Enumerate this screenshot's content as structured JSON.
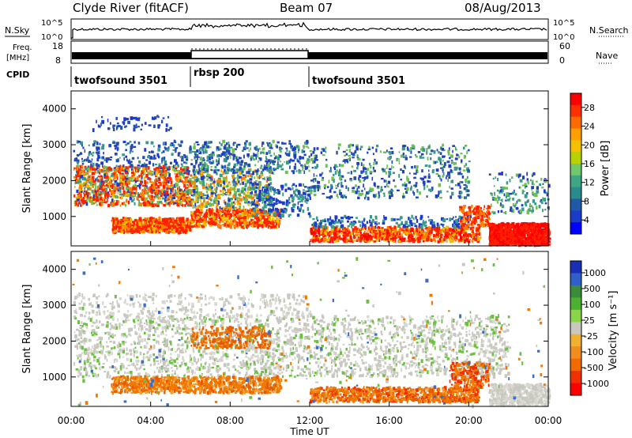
{
  "header": {
    "station": "Clyde River (fitACF)",
    "beam": "Beam 07",
    "date": "08/Aug/2013"
  },
  "strips": {
    "nsky_label": "N.Sky",
    "nsky_ticks": [
      "10^5",
      "10^0"
    ],
    "nsearch_label": "N.Search",
    "nsearch_ticks": [
      "10^5",
      "10^0"
    ],
    "freq_label_1": "Freq.",
    "freq_label_2": "[MHz]",
    "freq_ticks": [
      "18",
      "8"
    ],
    "nave_label": "Nave",
    "nave_ticks": [
      "60",
      "0"
    ],
    "cpid_label": "CPID",
    "cpid_segments": [
      {
        "label": "twofsound 3501",
        "start": 0,
        "end": 6
      },
      {
        "label": "rbsp 200",
        "start": 6,
        "end": 12
      },
      {
        "label": "twofsound 3501",
        "start": 12,
        "end": 24
      }
    ]
  },
  "time_ticks": [
    "00:00",
    "04:00",
    "08:00",
    "12:00",
    "16:00",
    "20:00",
    "00:00"
  ],
  "xlabel": "Time UT",
  "chart_data": [
    {
      "type": "heatmap",
      "name": "power",
      "ylabel": "Slant Range [km]",
      "xlim": [
        0,
        24
      ],
      "ylim": [
        180,
        4500
      ],
      "yticks": [
        1000,
        2000,
        3000,
        4000
      ],
      "colorbar": {
        "label": "Power [dB]",
        "ticks": [
          "28",
          "24",
          "20",
          "16",
          "12",
          "8",
          "4"
        ],
        "colors": [
          "#ff0000",
          "#ff3000",
          "#ff6a00",
          "#ffa000",
          "#f4c000",
          "#b8d200",
          "#6fc86a",
          "#3ea585",
          "#2a8a8c",
          "#1e5aa8",
          "#1a3cc8",
          "#0000ff"
        ]
      },
      "features": [
        {
          "x": [
            0,
            6
          ],
          "y": [
            1400,
            1900
          ],
          "level": "high"
        },
        {
          "x": [
            2,
            6
          ],
          "y": [
            600,
            900
          ],
          "level": "high"
        },
        {
          "x": [
            6,
            10
          ],
          "y": [
            700,
            1100
          ],
          "level": "high"
        },
        {
          "x": [
            12,
            20
          ],
          "y": [
            300,
            700
          ],
          "level": "high"
        },
        {
          "x": [
            21,
            24
          ],
          "y": [
            200,
            800
          ],
          "level": "very high"
        }
      ]
    },
    {
      "type": "heatmap",
      "name": "velocity",
      "ylabel": "Slant Range [km]",
      "xlim": [
        0,
        24
      ],
      "ylim": [
        180,
        4500
      ],
      "yticks": [
        1000,
        2000,
        3000,
        4000
      ],
      "colorbar": {
        "label": "Velocity [m s⁻¹]",
        "ticks": [
          "1000",
          "500",
          "100",
          "25",
          "-25",
          "-100",
          "-500",
          "-1000"
        ],
        "colors": [
          "#1a2fb8",
          "#2f5fc8",
          "#3a8c3a",
          "#4cb030",
          "#8ad44a",
          "#c8c8c0",
          "#f0b030",
          "#f08c20",
          "#f06a00",
          "#f03000",
          "#ff0000"
        ]
      },
      "features": [
        {
          "x": [
            0,
            22
          ],
          "y": [
            1000,
            2600
          ],
          "level": "low velocity"
        },
        {
          "x": [
            2,
            10
          ],
          "y": [
            600,
            1000
          ],
          "level": "negative"
        },
        {
          "x": [
            13,
            20
          ],
          "y": [
            300,
            700
          ],
          "level": "negative"
        }
      ]
    }
  ]
}
